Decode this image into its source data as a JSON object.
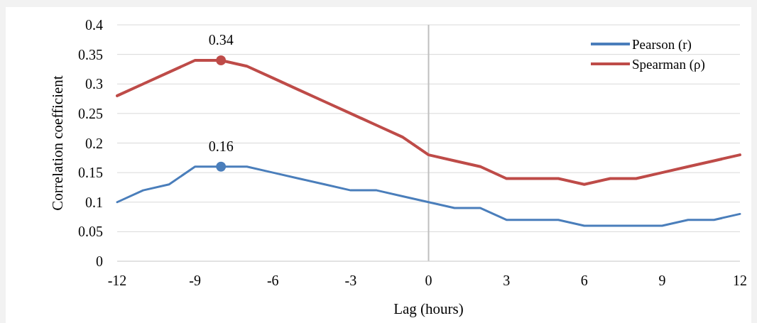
{
  "chart_data": {
    "type": "line",
    "xlabel": "Lag (hours)",
    "ylabel": "Correlation coefficient",
    "x": [
      -12,
      -11,
      -10,
      -9,
      -8,
      -7,
      -6,
      -5,
      -4,
      -3,
      -2,
      -1,
      0,
      1,
      2,
      3,
      4,
      5,
      6,
      7,
      8,
      9,
      10,
      11,
      12
    ],
    "series": [
      {
        "name": "Pearson (r)",
        "color": "#4a7ebb",
        "values": [
          0.1,
          0.12,
          0.13,
          0.16,
          0.16,
          0.16,
          0.15,
          0.14,
          0.13,
          0.12,
          0.12,
          0.11,
          0.1,
          0.09,
          0.09,
          0.07,
          0.07,
          0.07,
          0.06,
          0.06,
          0.06,
          0.06,
          0.07,
          0.07,
          0.08
        ]
      },
      {
        "name": "Spearman (ρ)",
        "color": "#be4b48",
        "values": [
          0.28,
          0.3,
          0.32,
          0.34,
          0.34,
          0.33,
          0.31,
          0.29,
          0.27,
          0.25,
          0.23,
          0.21,
          0.18,
          0.17,
          0.16,
          0.14,
          0.14,
          0.14,
          0.13,
          0.14,
          0.14,
          0.15,
          0.16,
          0.17,
          0.18
        ]
      },
      {
        "type": "scatter",
        "marker": "circle",
        "color": "#4a7ebb",
        "x": [
          -8
        ],
        "values": [
          0.16
        ]
      },
      {
        "type": "scatter",
        "marker": "circle",
        "color": "#be4b48",
        "x": [
          -8
        ],
        "values": [
          0.34
        ]
      }
    ],
    "xlim": [
      -12,
      12
    ],
    "xticks": [
      -12,
      -9,
      -6,
      -3,
      0,
      3,
      6,
      9,
      12
    ],
    "ylim": [
      0,
      0.4
    ],
    "yticks": [
      0,
      0.05,
      0.1,
      0.15,
      0.2,
      0.25,
      0.3,
      0.35,
      0.4
    ],
    "grid": "y",
    "legend": "top right",
    "marker": "none",
    "ref_lines": [
      {
        "axis": "x",
        "value": 0,
        "color": "#bfbfbf"
      }
    ],
    "annotations": [
      {
        "text": "0.16",
        "x": -8,
        "y": 0.16
      },
      {
        "text": "0.34",
        "x": -8,
        "y": 0.34
      }
    ]
  }
}
